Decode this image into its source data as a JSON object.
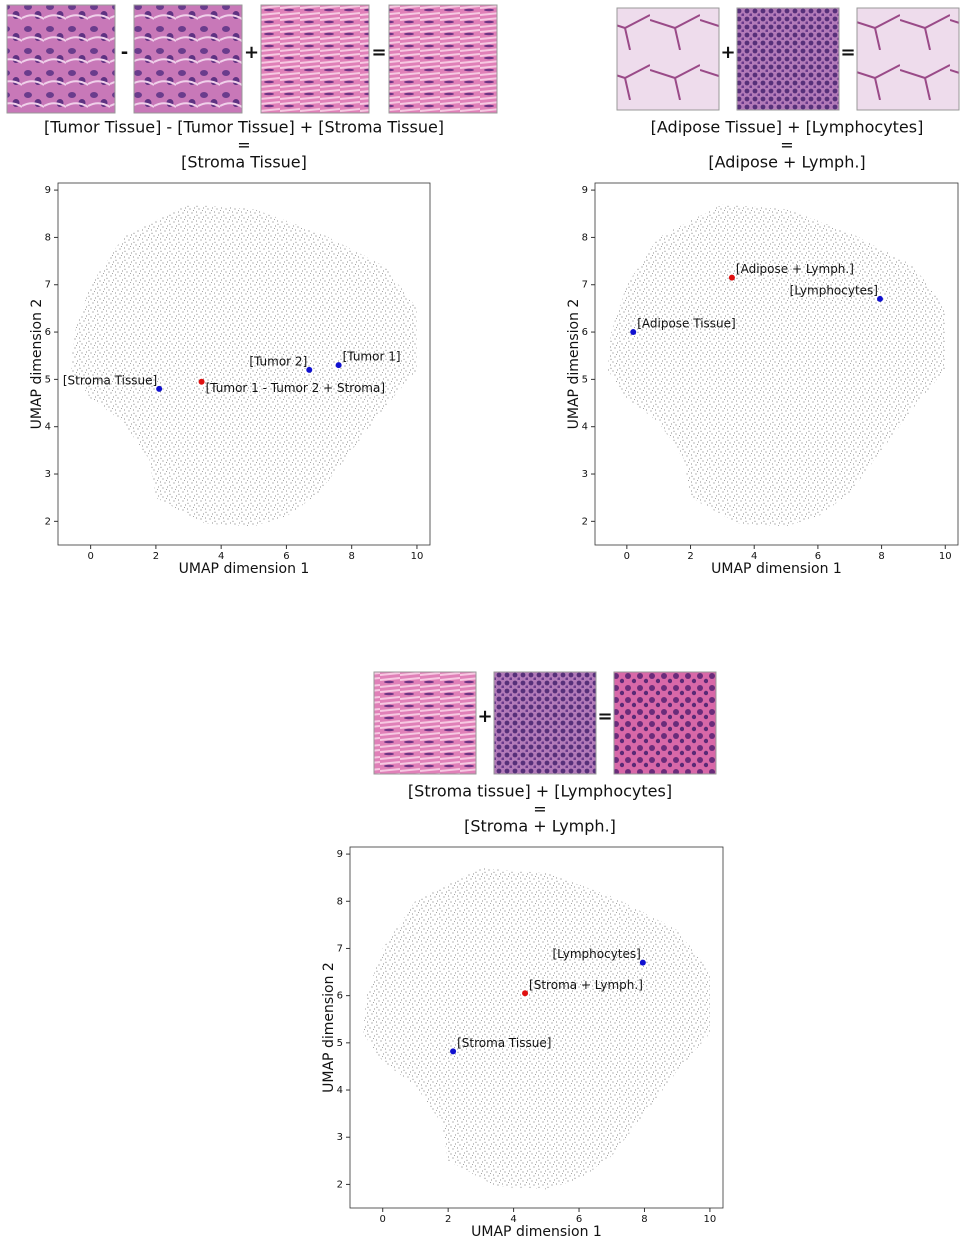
{
  "chart_data": [
    {
      "type": "scatter",
      "equation": {
        "operators": [
          "-",
          "+",
          "="
        ],
        "caption": [
          "[Tumor Tissue] - [Tumor Tissue] + [Stroma Tissue]",
          "=",
          "[Stroma Tissue]"
        ]
      },
      "xlabel": "UMAP dimension 1",
      "ylabel": "UMAP dimension 2",
      "xlim": [
        -1,
        10.4
      ],
      "ylim": [
        1.5,
        9.15
      ],
      "xticks": [
        0,
        2,
        4,
        6,
        8,
        10
      ],
      "yticks": [
        2,
        3,
        4,
        5,
        6,
        7,
        8,
        9
      ],
      "x": [
        2.1,
        3.4,
        6.7,
        7.6
      ],
      "values": [
        4.8,
        4.95,
        5.2,
        5.3
      ],
      "point_labels": [
        "[Stroma Tissue]",
        "[Tumor 1 - Tumor 2 + Stroma]",
        "[Tumor 2]",
        "[Tumor 1]"
      ],
      "colors": [
        "#1010d0",
        "#e01010",
        "#1010d0",
        "#1010d0"
      ]
    },
    {
      "type": "scatter",
      "equation": {
        "operators": [
          "+",
          "="
        ],
        "caption": [
          "[Adipose Tissue] + [Lymphocytes]",
          "=",
          "[Adipose + Lymph.]"
        ]
      },
      "xlabel": "UMAP dimension 1",
      "ylabel": "UMAP dimension 2",
      "xlim": [
        -1,
        10.4
      ],
      "ylim": [
        1.5,
        9.15
      ],
      "xticks": [
        0,
        2,
        4,
        6,
        8,
        10
      ],
      "yticks": [
        2,
        3,
        4,
        5,
        6,
        7,
        8,
        9
      ],
      "x": [
        0.2,
        3.3,
        7.95
      ],
      "values": [
        6.0,
        7.15,
        6.7
      ],
      "point_labels": [
        "[Adipose Tissue]",
        "[Adipose + Lymph.]",
        "[Lymphocytes]"
      ],
      "colors": [
        "#1010d0",
        "#e01010",
        "#1010d0"
      ]
    },
    {
      "type": "scatter",
      "equation": {
        "operators": [
          "+",
          "="
        ],
        "caption": [
          "[Stroma tissue] + [Lymphocytes]",
          "=",
          "[Stroma + Lymph.]"
        ]
      },
      "xlabel": "UMAP dimension 1",
      "ylabel": "UMAP dimension 2",
      "xlim": [
        -1,
        10.4
      ],
      "ylim": [
        1.5,
        9.15
      ],
      "xticks": [
        0,
        2,
        4,
        6,
        8,
        10
      ],
      "yticks": [
        2,
        3,
        4,
        5,
        6,
        7,
        8,
        9
      ],
      "x": [
        2.15,
        4.35,
        7.95
      ],
      "values": [
        4.82,
        6.05,
        6.7
      ],
      "point_labels": [
        "[Stroma Tissue]",
        "[Stroma + Lymph.]",
        "[Lymphocytes]"
      ],
      "colors": [
        "#1010d0",
        "#e01010",
        "#1010d0"
      ]
    }
  ]
}
